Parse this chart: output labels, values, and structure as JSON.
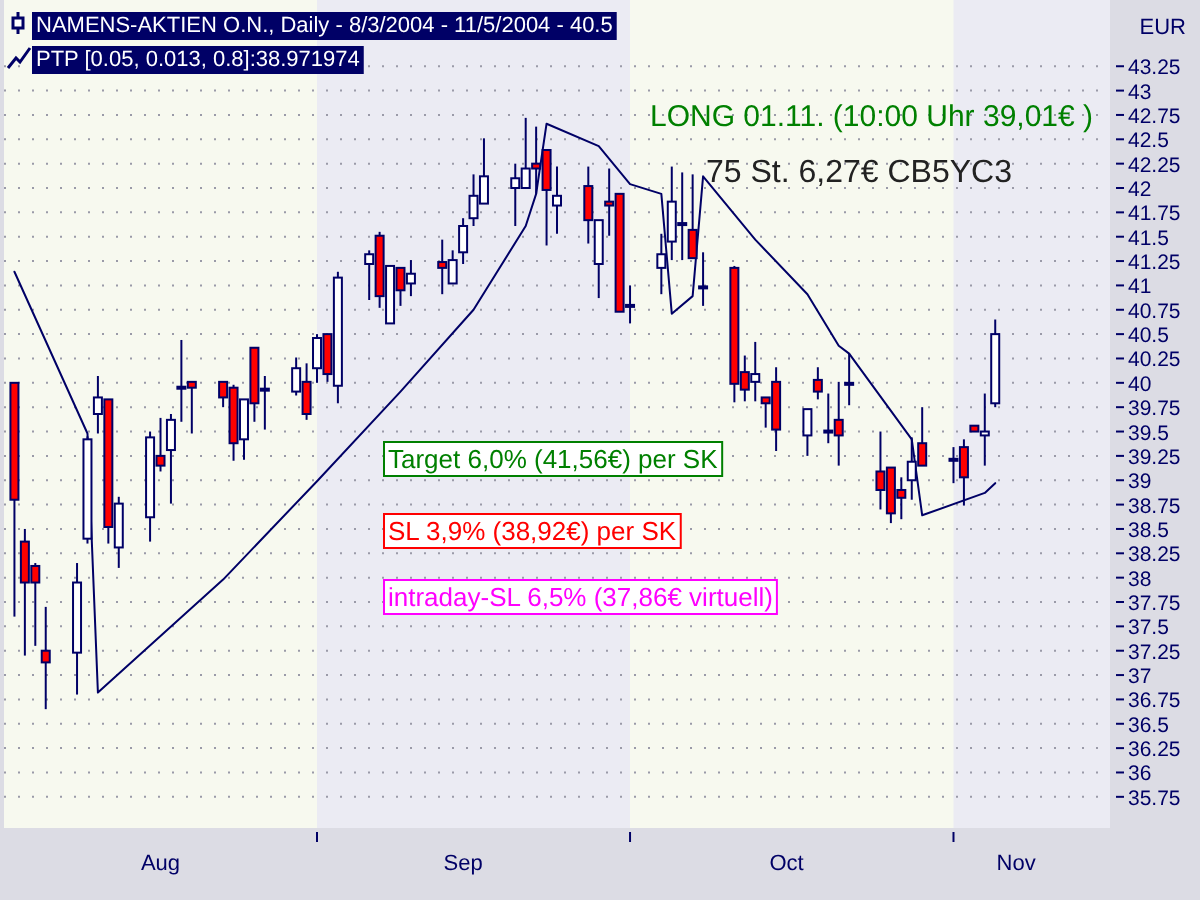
{
  "chart_data": {
    "type": "candlestick",
    "title": "NAMENS-AKTIEN O.N., Daily - 8/3/2004 - 11/5/2004 - 40.5",
    "ylabel": "EUR",
    "x": [
      "2004-08-03",
      "2004-08-04",
      "2004-08-05",
      "2004-08-06",
      "2004-08-09",
      "2004-08-10",
      "2004-08-11",
      "2004-08-12",
      "2004-08-13",
      "2004-08-16",
      "2004-08-17",
      "2004-08-18",
      "2004-08-19",
      "2004-08-20",
      "2004-08-23",
      "2004-08-24",
      "2004-08-25",
      "2004-08-26",
      "2004-08-27",
      "2004-08-30",
      "2004-08-31",
      "2004-09-01",
      "2004-09-02",
      "2004-09-03",
      "2004-09-06",
      "2004-09-07",
      "2004-09-08",
      "2004-09-09",
      "2004-09-10",
      "2004-09-13",
      "2004-09-14",
      "2004-09-15",
      "2004-09-16",
      "2004-09-17",
      "2004-09-20",
      "2004-09-21",
      "2004-09-22",
      "2004-09-23",
      "2004-09-24",
      "2004-09-27",
      "2004-09-28",
      "2004-09-29",
      "2004-09-30",
      "2004-10-01",
      "2004-10-04",
      "2004-10-05",
      "2004-10-06",
      "2004-10-07",
      "2004-10-08",
      "2004-10-11",
      "2004-10-12",
      "2004-10-13",
      "2004-10-14",
      "2004-10-15",
      "2004-10-18",
      "2004-10-19",
      "2004-10-20",
      "2004-10-21",
      "2004-10-22",
      "2004-10-25",
      "2004-10-26",
      "2004-10-27",
      "2004-10-28",
      "2004-10-29",
      "2004-11-01",
      "2004-11-02",
      "2004-11-03",
      "2004-11-04",
      "2004-11-05"
    ],
    "ohlc": [
      [
        40.0,
        40.0,
        37.6,
        38.8
      ],
      [
        38.37,
        38.5,
        37.2,
        37.95
      ],
      [
        38.12,
        38.15,
        37.3,
        37.95
      ],
      [
        37.25,
        37.7,
        36.65,
        37.13
      ],
      [
        37.23,
        38.15,
        36.8,
        37.95
      ],
      [
        38.4,
        39.45,
        38.35,
        39.42
      ],
      [
        39.68,
        40.07,
        39.48,
        39.85
      ],
      [
        39.83,
        39.83,
        38.35,
        38.52
      ],
      [
        38.31,
        38.83,
        38.1,
        38.76
      ],
      [
        38.62,
        39.5,
        38.37,
        39.44
      ],
      [
        39.25,
        39.64,
        39.09,
        39.15
      ],
      [
        39.31,
        39.68,
        38.76,
        39.62
      ],
      [
        39.94,
        40.44,
        39.6,
        39.96
      ],
      [
        40.01,
        40.01,
        39.48,
        39.95
      ],
      [
        40.01,
        40.01,
        39.75,
        39.85
      ],
      [
        39.95,
        39.98,
        39.2,
        39.38
      ],
      [
        39.42,
        39.83,
        39.21,
        39.83
      ],
      [
        40.36,
        40.36,
        39.6,
        39.79
      ],
      [
        39.92,
        40.07,
        39.52,
        39.94
      ],
      [
        39.91,
        40.26,
        39.87,
        40.15
      ],
      [
        40.01,
        40.2,
        39.62,
        39.68
      ],
      [
        40.15,
        40.5,
        40.0,
        40.46
      ],
      [
        40.5,
        40.5,
        40.01,
        40.09
      ],
      [
        39.97,
        41.14,
        39.79,
        41.08
      ],
      [
        41.22,
        41.36,
        40.85,
        41.32
      ],
      [
        41.51,
        41.55,
        40.77,
        40.89
      ],
      [
        40.61,
        41.2,
        40.61,
        41.2
      ],
      [
        41.18,
        41.18,
        40.79,
        40.95
      ],
      [
        41.02,
        41.26,
        40.89,
        41.12
      ],
      [
        41.24,
        41.47,
        40.91,
        41.18
      ],
      [
        41.02,
        41.36,
        41.02,
        41.26
      ],
      [
        41.34,
        41.69,
        41.22,
        41.61
      ],
      [
        41.69,
        42.14,
        41.61,
        41.92
      ],
      [
        41.84,
        42.51,
        41.84,
        42.12
      ],
      [
        42.0,
        42.25,
        41.61,
        42.1
      ],
      [
        42.0,
        42.72,
        42.0,
        42.2
      ],
      [
        42.25,
        42.63,
        41.94,
        42.2
      ],
      [
        42.39,
        42.39,
        41.41,
        41.98
      ],
      [
        41.82,
        42.22,
        41.53,
        41.92
      ],
      [
        42.02,
        42.22,
        41.43,
        41.67
      ],
      [
        41.22,
        41.67,
        40.87,
        41.67
      ],
      [
        41.86,
        42.2,
        41.51,
        41.82
      ],
      [
        41.94,
        41.94,
        40.73,
        40.73
      ],
      [
        40.78,
        41.0,
        40.61,
        40.8
      ],
      [
        41.18,
        41.53,
        40.91,
        41.32
      ],
      [
        41.45,
        42.22,
        41.26,
        41.86
      ],
      [
        41.62,
        42.16,
        41.26,
        41.64
      ],
      [
        41.57,
        42.14,
        41.28,
        41.28
      ],
      [
        40.97,
        41.34,
        40.79,
        40.99
      ],
      [
        41.18,
        41.2,
        39.8,
        39.99
      ],
      [
        40.11,
        40.28,
        39.81,
        39.93
      ],
      [
        40.01,
        40.42,
        39.81,
        40.09
      ],
      [
        39.85,
        39.85,
        39.54,
        39.79
      ],
      [
        40.01,
        40.16,
        39.3,
        39.52
      ],
      [
        39.46,
        39.73,
        39.25,
        39.73
      ],
      [
        40.03,
        40.16,
        39.83,
        39.91
      ],
      [
        39.49,
        39.89,
        39.38,
        39.51
      ],
      [
        39.62,
        40.01,
        39.15,
        39.46
      ],
      [
        39.98,
        40.3,
        39.77,
        40.0
      ],
      [
        39.09,
        39.5,
        38.7,
        38.9
      ],
      [
        39.13,
        39.13,
        38.56,
        38.66
      ],
      [
        38.9,
        39.03,
        38.6,
        38.82
      ],
      [
        39.0,
        39.44,
        38.8,
        39.19
      ],
      [
        39.38,
        39.75,
        39.15,
        39.15
      ],
      [
        39.2,
        39.34,
        38.97,
        39.22
      ],
      [
        39.34,
        39.42,
        38.74,
        39.03
      ],
      [
        39.56,
        39.56,
        39.5,
        39.5
      ],
      [
        39.46,
        39.89,
        39.15,
        39.5
      ],
      [
        39.79,
        40.65,
        39.75,
        40.5
      ]
    ],
    "series": [
      {
        "type": "line",
        "name": "PTP [0.05, 0.013, 0.8]:38.971974",
        "color": "#000066",
        "x": [
          "2004-08-03",
          "2004-08-10",
          "2004-08-11",
          "2004-08-23",
          "2004-09-01",
          "2004-09-09",
          "2004-09-16",
          "2004-09-21",
          "2004-09-22",
          "2004-09-23",
          "2004-09-28",
          "2004-10-01",
          "2004-10-04",
          "2004-10-05",
          "2004-10-07",
          "2004-10-08",
          "2004-10-13",
          "2004-10-18",
          "2004-10-21",
          "2004-10-22",
          "2004-10-28",
          "2004-10-29",
          "2004-11-04",
          "2004-11-05"
        ],
        "values": [
          41.14,
          39.48,
          36.82,
          37.98,
          38.99,
          39.91,
          40.75,
          41.61,
          41.94,
          42.66,
          42.43,
          42.04,
          41.94,
          40.71,
          40.89,
          42.12,
          41.47,
          40.91,
          40.38,
          40.3,
          39.42,
          38.64,
          38.87,
          38.97
        ]
      }
    ],
    "xlim": [
      "2004-08-02",
      "2004-11-16"
    ],
    "xticks": [
      {
        "value": "2004-09-01",
        "label": null
      },
      {
        "value": "2004-10-01",
        "label": null
      },
      {
        "value": "2004-11-01",
        "label": null
      },
      {
        "value": "2004-08-17",
        "label": "Aug"
      },
      {
        "value": "2004-09-15",
        "label": "Sep"
      },
      {
        "value": "2004-10-16",
        "label": "Oct"
      },
      {
        "value": "2004-11-07",
        "label": "Nov"
      }
    ],
    "ylim": [
      35.43,
      43.93
    ],
    "yticks": [
      35.75,
      36,
      36.25,
      36.5,
      36.75,
      37,
      37.25,
      37.5,
      37.75,
      38,
      38.25,
      38.5,
      38.75,
      39,
      39.25,
      39.5,
      39.75,
      40,
      40.25,
      40.5,
      40.75,
      41,
      41.25,
      41.5,
      41.75,
      42,
      42.25,
      42.5,
      42.75,
      43,
      43.25
    ],
    "grid": "y",
    "legend": "top left",
    "bands": [
      {
        "axis": "x",
        "from": "2004-09-01",
        "to": "2004-10-01",
        "color": "#ebebf3"
      },
      {
        "axis": "x",
        "from": "2004-11-01",
        "to": "2004-11-16",
        "color": "#ebebf3"
      }
    ],
    "annotations": [
      "LONG 01.11. (10:00 Uhr 39,01€ )",
      "75 St. 6,27€ CB5YC3",
      "Target 6,0% (41,56€) per SK",
      "SL 3,9% (38,92€) per SK",
      "intraday-SL 6,5% (37,86€ virtuell)"
    ]
  }
}
